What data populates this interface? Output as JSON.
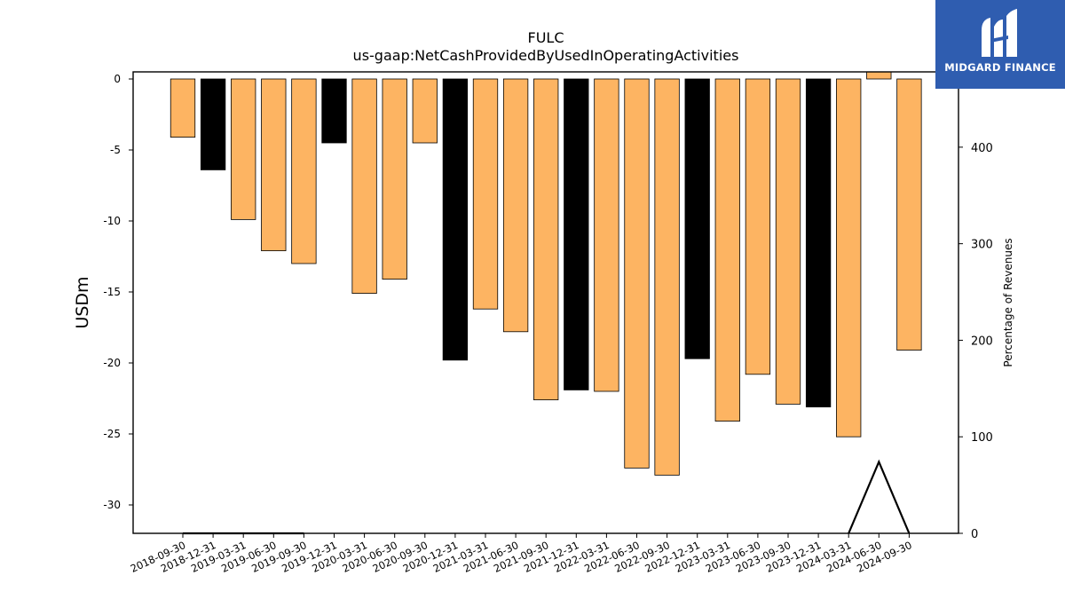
{
  "brand": {
    "name": "MIDGARD FINANCE",
    "color": "#2f5db0"
  },
  "chart_data": {
    "type": "bar",
    "title": "FULC",
    "subtitle": "us-gaap:NetCashProvidedByUsedInOperatingActivities",
    "ylabel": "USDm",
    "y2label": "Percentage of Revenues",
    "ylim": [
      -32,
      0.5
    ],
    "y2lim": [
      0,
      478
    ],
    "yticks": [
      0,
      -5,
      -10,
      -15,
      -20,
      -25,
      -30
    ],
    "y2ticks": [
      0,
      100,
      200,
      300,
      400
    ],
    "grid": false,
    "categories": [
      "2018-09-30",
      "2018-12-31",
      "2019-03-31",
      "2019-06-30",
      "2019-09-30",
      "2019-12-31",
      "2020-03-31",
      "2020-06-30",
      "2020-09-30",
      "2020-12-31",
      "2021-03-31",
      "2021-06-30",
      "2021-09-30",
      "2021-12-31",
      "2022-03-31",
      "2022-06-30",
      "2022-09-30",
      "2022-12-31",
      "2023-03-31",
      "2023-06-30",
      "2023-09-30",
      "2023-12-31",
      "2024-03-31",
      "2024-06-30",
      "2024-09-30"
    ],
    "series": [
      {
        "values": [
          -4.1,
          -6.4,
          -9.9,
          -12.1,
          -13.0,
          -4.5,
          -15.1,
          -14.1,
          -4.5,
          -19.8,
          -16.2,
          -17.8,
          -22.6,
          -21.9,
          -22.0,
          -27.4,
          -27.9,
          -19.7,
          -24.1,
          -20.8,
          -22.9,
          -23.1,
          -25.2,
          0.5,
          -19.1
        ],
        "colors": [
          "#fdb462",
          "#000000",
          "#fdb462",
          "#fdb462",
          "#fdb462",
          "#000000",
          "#fdb462",
          "#fdb462",
          "#fdb462",
          "#000000",
          "#fdb462",
          "#fdb462",
          "#fdb462",
          "#000000",
          "#fdb462",
          "#fdb462",
          "#fdb462",
          "#000000",
          "#fdb462",
          "#fdb462",
          "#fdb462",
          "#000000",
          "#fdb462",
          "#fdb462",
          "#fdb462"
        ]
      },
      {
        "axis": "right",
        "type": "line",
        "x": [
          "2018-09-30",
          "2018-12-31",
          "2019-03-31",
          "2019-06-30",
          "2019-09-30",
          "2024-03-31",
          "2024-06-30",
          "2024-09-30"
        ],
        "values": [
          0,
          0,
          0,
          0,
          0,
          0,
          74,
          0
        ],
        "segments": [
          [
            0,
            4
          ],
          [
            5,
            7
          ]
        ],
        "color": "#000000"
      }
    ]
  }
}
